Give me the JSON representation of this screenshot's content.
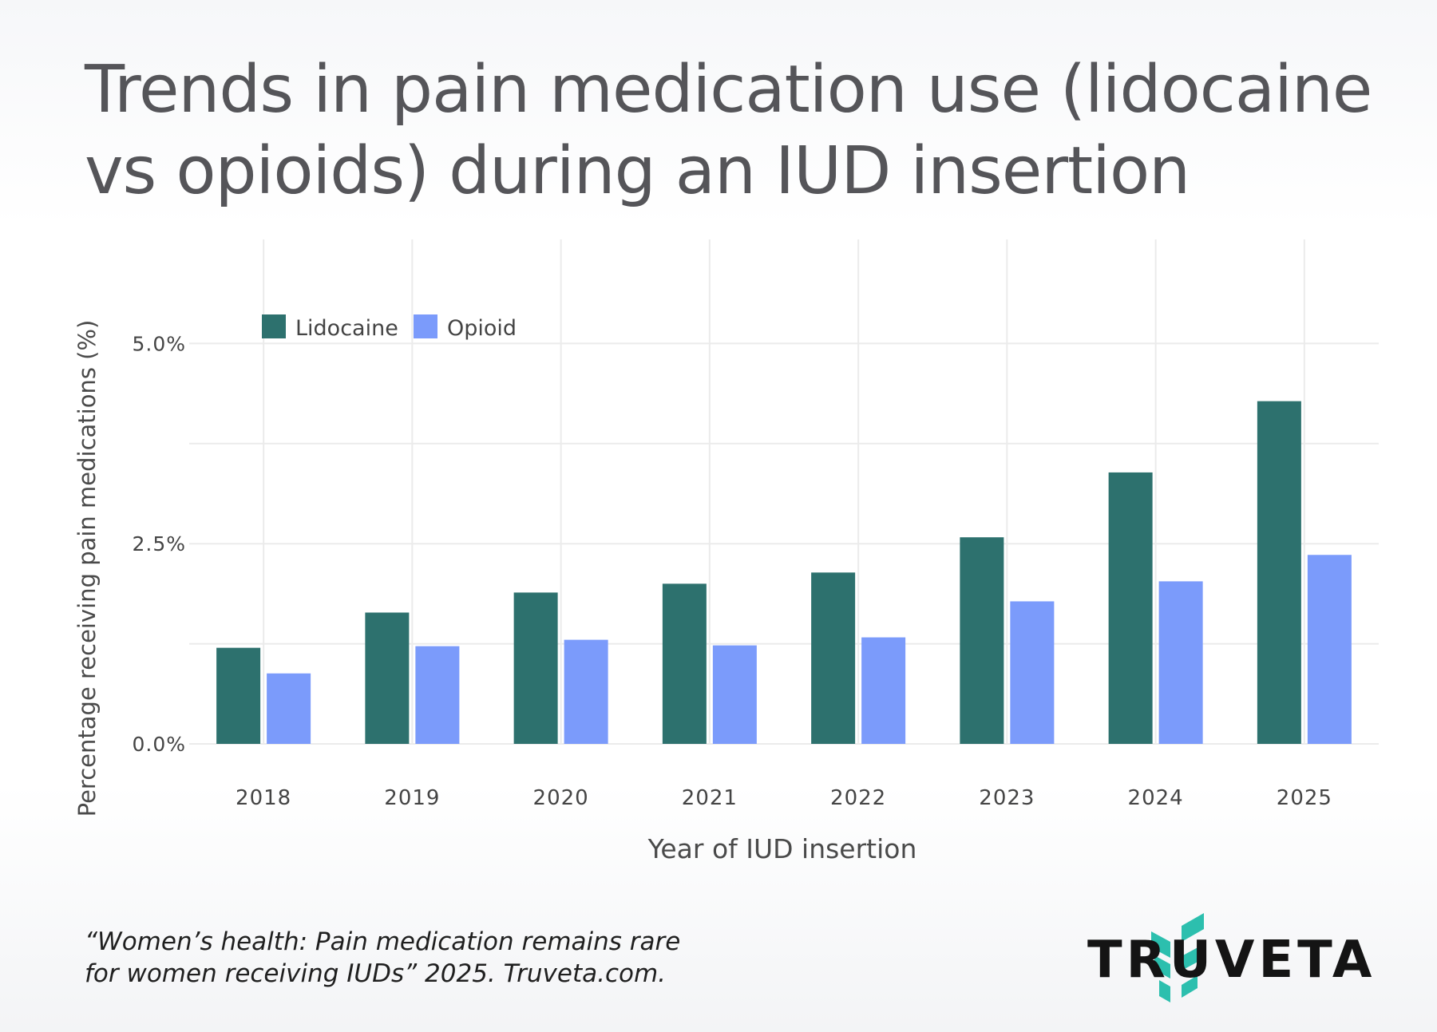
{
  "title": "Trends in pain medication use (lidocaine vs opioids) during an IUD insertion",
  "citation": "“Women’s health: Pain medication remains rare for women receiving IUDs” 2025. Truveta.com.",
  "brand": {
    "name": "TRUVETA",
    "icon": "truveta-leaf-icon",
    "accent_color": "#2cbfae"
  },
  "chart_data": {
    "type": "bar",
    "categories": [
      "2018",
      "2019",
      "2020",
      "2021",
      "2022",
      "2023",
      "2024",
      "2025"
    ],
    "series": [
      {
        "name": "Lidocaine",
        "color": "#2d716e",
        "values": [
          1.2,
          1.64,
          1.89,
          2.0,
          2.14,
          2.58,
          3.39,
          4.28
        ]
      },
      {
        "name": "Opioid",
        "color": "#7b9bfb",
        "values": [
          0.88,
          1.22,
          1.3,
          1.23,
          1.33,
          1.78,
          2.03,
          2.36
        ]
      }
    ],
    "xlabel": "Year of IUD insertion",
    "ylabel": "Percentage receiving pain medications (%)",
    "ylim": [
      0,
      6.3
    ],
    "yticks": [
      0,
      2.5,
      5
    ],
    "ytick_labels": [
      "0.0%",
      "2.5%",
      "5.0%"
    ],
    "grid": true,
    "legend_position": "top-left"
  }
}
